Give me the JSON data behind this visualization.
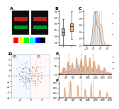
{
  "bg_color": "#ffffff",
  "panel_A": {
    "label": "A",
    "gel1_bg": "#0a0a0a",
    "gel2_bg": "#0a0a0a",
    "red_band": "#dd2222",
    "green_band": "#00cc44",
    "colorbar_colors": [
      "#ff0000",
      "#ffff00",
      "#00ff00",
      "#00ffff",
      "#0000ff",
      "#000000"
    ]
  },
  "panel_B": {
    "label": "B",
    "box1_facecolor": "#6699cc",
    "box2_facecolor": "#ee9955",
    "median_color": "#333333",
    "outlier_color": "#333333"
  },
  "panel_C": {
    "label": "C",
    "line_blue": "#6699cc",
    "line_orange": "#ee9955",
    "fill_blue_alpha": 0.15,
    "fill_orange_alpha": 0.15,
    "vline_blue": "#6699cc",
    "vline_orange": "#ee9955",
    "annot_color1": "#ee9955",
    "annot_color2": "#6699cc",
    "annot_color3": "#6699cc"
  },
  "panel_D": {
    "label": "D",
    "bg_left": "#ddeeff",
    "bg_right": "#ffeeee",
    "scatter_blue": "#5577bb",
    "scatter_orange": "#cc6644",
    "zero_line_color": "#aaaaaa",
    "border_color": "#aaaaaa"
  },
  "panel_E": {
    "label": "E",
    "fill_orange": "#dd9966",
    "fill_blue": "#8899cc",
    "vline_color": "#cc3333",
    "annot1": "#dd9966",
    "annot2": "#8899cc",
    "annot3": "#8899cc"
  },
  "panel_F": {
    "label": "F",
    "line_color": "#dd9966",
    "fill_color": "#dd9966",
    "vline_color": "#cc3333"
  }
}
